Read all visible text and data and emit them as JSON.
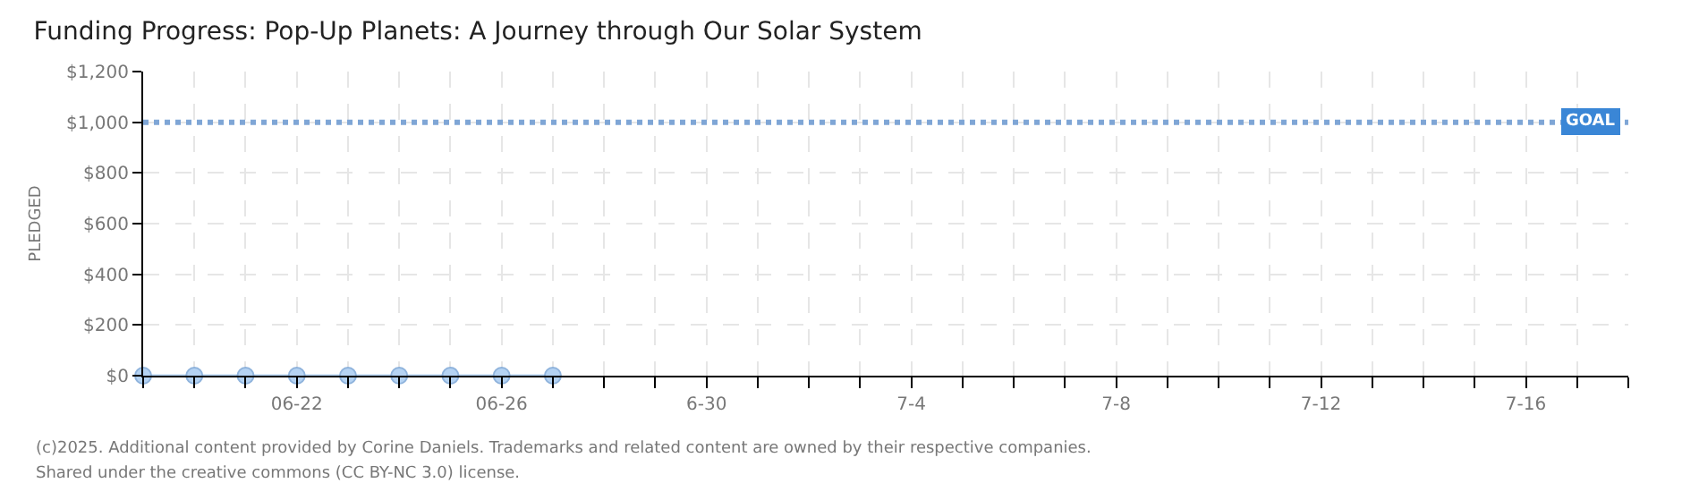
{
  "chart_data": {
    "type": "line",
    "title": "Funding Progress: Pop-Up Planets: A Journey through Our Solar System",
    "ylabel": "PLEDGED",
    "x": [
      "2025-06-19",
      "2025-06-20",
      "2025-06-21",
      "2025-06-22",
      "2025-06-23",
      "2025-06-24",
      "2025-06-25",
      "2025-06-26",
      "2025-06-27"
    ],
    "series": [
      {
        "color": "#b5d3f3",
        "values": [
          0,
          0,
          0,
          0,
          0,
          0,
          0,
          0,
          0
        ]
      }
    ],
    "xlim": [
      "2025-06-19",
      "2025-07-18"
    ],
    "xticks": [
      {
        "value": "2025-06-19",
        "label": null
      },
      {
        "value": "2025-06-20",
        "label": null
      },
      {
        "value": "2025-06-21",
        "label": null
      },
      {
        "value": "2025-06-22",
        "label": "06-22"
      },
      {
        "value": "2025-06-23",
        "label": null
      },
      {
        "value": "2025-06-24",
        "label": null
      },
      {
        "value": "2025-06-25",
        "label": null
      },
      {
        "value": "2025-06-26",
        "label": "06-26"
      },
      {
        "value": "2025-06-27",
        "label": null
      },
      {
        "value": "2025-06-28",
        "label": null
      },
      {
        "value": "2025-06-29",
        "label": null
      },
      {
        "value": "2025-06-30",
        "label": "6-30"
      },
      {
        "value": "2025-07-01",
        "label": null
      },
      {
        "value": "2025-07-02",
        "label": null
      },
      {
        "value": "2025-07-03",
        "label": null
      },
      {
        "value": "2025-07-04",
        "label": "7-4"
      },
      {
        "value": "2025-07-05",
        "label": null
      },
      {
        "value": "2025-07-06",
        "label": null
      },
      {
        "value": "2025-07-07",
        "label": null
      },
      {
        "value": "2025-07-08",
        "label": "7-8"
      },
      {
        "value": "2025-07-09",
        "label": null
      },
      {
        "value": "2025-07-10",
        "label": null
      },
      {
        "value": "2025-07-11",
        "label": null
      },
      {
        "value": "2025-07-12",
        "label": "7-12"
      },
      {
        "value": "2025-07-13",
        "label": null
      },
      {
        "value": "2025-07-14",
        "label": null
      },
      {
        "value": "2025-07-15",
        "label": null
      },
      {
        "value": "2025-07-16",
        "label": "7-16"
      },
      {
        "value": "2025-07-17",
        "label": null
      },
      {
        "value": "2025-07-18",
        "label": null
      }
    ],
    "ylim": [
      0,
      1200
    ],
    "yticks": [
      {
        "value": 0,
        "label": "$0"
      },
      {
        "value": 200,
        "label": "$200"
      },
      {
        "value": 400,
        "label": "$400"
      },
      {
        "value": 600,
        "label": "$600"
      },
      {
        "value": 800,
        "label": "$800"
      },
      {
        "value": 1000,
        "label": "$1,000"
      },
      {
        "value": 1200,
        "label": "$1,200"
      }
    ],
    "ref_lines": [
      {
        "axis": "y",
        "value": 1000,
        "label": "GOAL",
        "color": "#7fa6d6",
        "line_style": "dotted"
      }
    ],
    "grid": true,
    "marker": "circle",
    "line_style": "solid",
    "annotations": [
      "(c)2025. Additional content provided by Corine Daniels. Trademarks and related content are owned by their respective companies.",
      "Shared under the creative commons (CC BY-NC 3.0) license."
    ]
  }
}
